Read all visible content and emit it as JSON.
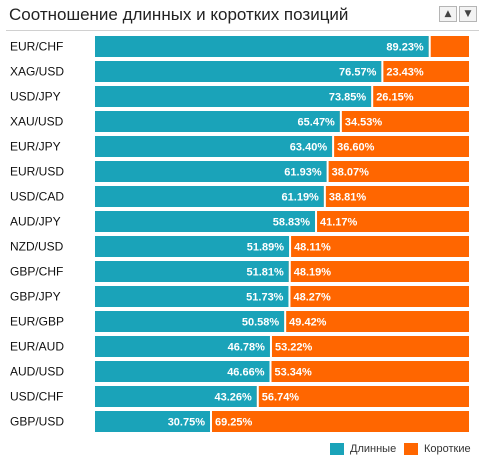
{
  "title": "Соотношение длинных и коротких позиций",
  "sort": {
    "up_icon": "triangle-up-icon",
    "down_icon": "triangle-down-icon",
    "up_glyph": "▲",
    "down_glyph": "▼"
  },
  "colors": {
    "long": "#1aa3b9",
    "short": "#ff6600",
    "separator": "#ffffff"
  },
  "legend": {
    "long_label": "Длинные",
    "short_label": "Короткие"
  },
  "chart_data": {
    "type": "bar",
    "orientation": "horizontal",
    "stacked": true,
    "title": "Соотношение длинных и коротких позиций",
    "xlim": [
      0,
      100
    ],
    "legend_position": "bottom-right",
    "categories": [
      "EUR/CHF",
      "XAG/USD",
      "USD/JPY",
      "XAU/USD",
      "EUR/JPY",
      "EUR/USD",
      "USD/CAD",
      "AUD/JPY",
      "NZD/USD",
      "GBP/CHF",
      "GBP/JPY",
      "EUR/GBP",
      "EUR/AUD",
      "AUD/USD",
      "USD/CHF",
      "GBP/USD"
    ],
    "series": [
      {
        "name": "Длинные",
        "values": [
          89.23,
          76.57,
          73.85,
          65.47,
          63.4,
          61.93,
          61.19,
          58.83,
          51.89,
          51.81,
          51.73,
          50.58,
          46.78,
          46.66,
          43.26,
          30.75
        ]
      },
      {
        "name": "Короткие",
        "values": [
          10.77,
          23.43,
          26.15,
          34.53,
          36.6,
          38.07,
          38.81,
          41.17,
          48.11,
          48.19,
          48.27,
          49.42,
          53.22,
          53.34,
          56.74,
          69.25
        ]
      }
    ],
    "long_labels": [
      "89.23%",
      "76.57%",
      "73.85%",
      "65.47%",
      "63.40%",
      "61.93%",
      "61.19%",
      "58.83%",
      "51.89%",
      "51.81%",
      "51.73%",
      "50.58%",
      "46.78%",
      "46.66%",
      "43.26%",
      "30.75%"
    ],
    "short_labels": [
      "",
      "23.43%",
      "26.15%",
      "34.53%",
      "36.60%",
      "38.07%",
      "38.81%",
      "41.17%",
      "48.11%",
      "48.19%",
      "48.27%",
      "49.42%",
      "53.22%",
      "53.34%",
      "56.74%",
      "69.25%"
    ]
  }
}
